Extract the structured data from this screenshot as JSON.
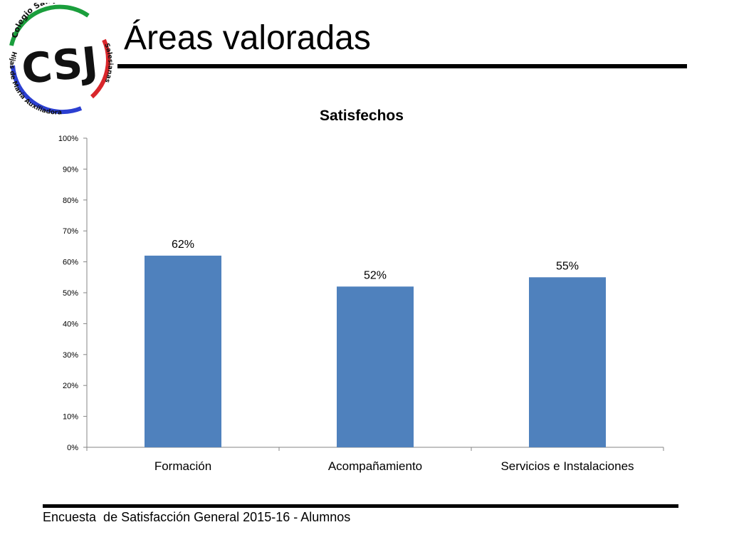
{
  "slide": {
    "title": "Áreas valoradas",
    "footer": "Encuesta  de Satisfacción General 2015-16 - Alumnos"
  },
  "logo": {
    "initials": "CSJ",
    "arc_top_text": "Colegio San José",
    "arc_side_text": "Salesianas",
    "arc_bottom_text": "Hijas de María Auxiliadora",
    "colors": {
      "green": "#1a9e3c",
      "blue": "#2b3fd1",
      "red": "#d9262b"
    }
  },
  "chart_data": {
    "type": "bar",
    "title": "Satisfechos",
    "categories": [
      "Formación",
      "Acompañamiento",
      "Servicios e Instalaciones"
    ],
    "values": [
      0.62,
      0.52,
      0.55
    ],
    "data_labels": [
      "62%",
      "52%",
      "55%"
    ],
    "ylim": [
      0,
      1
    ],
    "yticks": [
      "0%",
      "10%",
      "20%",
      "30%",
      "40%",
      "50%",
      "60%",
      "70%",
      "80%",
      "90%",
      "100%"
    ],
    "xlabel": "",
    "ylabel": "",
    "bar_color": "#4f81bd",
    "axis_color": "#868686",
    "grid": false,
    "legend": "none"
  }
}
